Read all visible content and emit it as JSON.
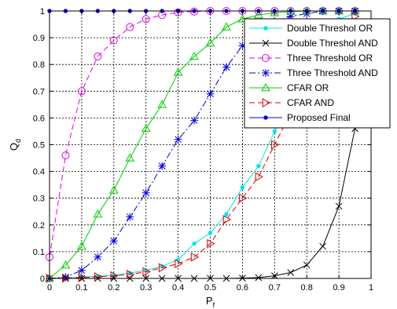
{
  "chart_data": {
    "type": "line",
    "xlabel": "P",
    "xlabel_sub": "f",
    "ylabel": "Q",
    "ylabel_sub": "d",
    "xlim": [
      0,
      1
    ],
    "ylim": [
      0,
      1
    ],
    "xticks": [
      "0",
      "0.1",
      "0.2",
      "0.3",
      "0.4",
      "0.5",
      "0.6",
      "0.7",
      "0.8",
      "0.9",
      "1"
    ],
    "yticks": [
      "0",
      "0.1",
      "0.2",
      "0.3",
      "0.4",
      "0.5",
      "0.6",
      "0.7",
      "0.8",
      "0.9",
      "1"
    ],
    "grid": true,
    "legend_position": "top-right",
    "series": [
      {
        "name": "Double Threshol OR",
        "color": "#00e5e5",
        "marker": "dot",
        "dash": "solid",
        "x": [
          0,
          0.05,
          0.1,
          0.15,
          0.2,
          0.25,
          0.3,
          0.35,
          0.4,
          0.45,
          0.5,
          0.55,
          0.6,
          0.65,
          0.7,
          0.75,
          0.8,
          0.85,
          0.9,
          0.95
        ],
        "y": [
          0,
          0.002,
          0.005,
          0.008,
          0.012,
          0.02,
          0.03,
          0.045,
          0.07,
          0.13,
          0.17,
          0.24,
          0.34,
          0.42,
          0.55,
          0.67,
          0.8,
          0.9,
          0.97,
          0.99
        ]
      },
      {
        "name": "Double Threshol AND",
        "color": "#000000",
        "marker": "x",
        "dash": "solid",
        "x": [
          0,
          0.05,
          0.1,
          0.15,
          0.2,
          0.25,
          0.3,
          0.35,
          0.4,
          0.45,
          0.5,
          0.55,
          0.6,
          0.65,
          0.7,
          0.75,
          0.8,
          0.85,
          0.9,
          0.95
        ],
        "y": [
          0,
          0,
          0,
          0,
          0,
          0,
          0,
          0,
          0,
          0,
          0,
          0,
          0.001,
          0.003,
          0.01,
          0.022,
          0.05,
          0.12,
          0.27,
          0.56
        ]
      },
      {
        "name": "Three Threshold OR",
        "color": "#e000e0",
        "marker": "circle",
        "dash": "dashed",
        "x": [
          0,
          0.05,
          0.1,
          0.15,
          0.2,
          0.25,
          0.3,
          0.35,
          0.4,
          0.45,
          0.5,
          0.55,
          0.6,
          0.65,
          0.7,
          0.75,
          0.8,
          0.85,
          0.9,
          0.95
        ],
        "y": [
          0.08,
          0.46,
          0.7,
          0.83,
          0.89,
          0.94,
          0.97,
          0.985,
          0.995,
          0.998,
          1,
          1,
          1,
          1,
          1,
          1,
          1,
          1,
          1,
          1
        ]
      },
      {
        "name": "Three Threshold AND",
        "color": "#0000cc",
        "marker": "star",
        "dash": "dashdot",
        "x": [
          0,
          0.05,
          0.1,
          0.15,
          0.2,
          0.25,
          0.3,
          0.35,
          0.4,
          0.45,
          0.5,
          0.55,
          0.6,
          0.65,
          0.7,
          0.75,
          0.8,
          0.85,
          0.9,
          0.95
        ],
        "y": [
          0,
          0.005,
          0.03,
          0.08,
          0.14,
          0.23,
          0.32,
          0.42,
          0.52,
          0.59,
          0.69,
          0.79,
          0.87,
          0.92,
          0.96,
          0.98,
          0.99,
          1,
          1,
          1
        ]
      },
      {
        "name": "CFAR OR",
        "color": "#00cc00",
        "marker": "triangle",
        "dash": "solid",
        "x": [
          0,
          0.05,
          0.1,
          0.15,
          0.2,
          0.25,
          0.3,
          0.35,
          0.4,
          0.45,
          0.5,
          0.55,
          0.6,
          0.65,
          0.7,
          0.75,
          0.8,
          0.85,
          0.9,
          0.95
        ],
        "y": [
          0,
          0.05,
          0.12,
          0.24,
          0.33,
          0.45,
          0.56,
          0.65,
          0.77,
          0.83,
          0.88,
          0.94,
          0.97,
          0.985,
          0.993,
          0.998,
          1,
          1,
          1,
          1
        ]
      },
      {
        "name": "CFAR AND",
        "color": "#dd0000",
        "marker": "triangle-right",
        "dash": "dashed",
        "x": [
          0,
          0.05,
          0.1,
          0.15,
          0.2,
          0.25,
          0.3,
          0.35,
          0.4,
          0.45,
          0.5,
          0.55,
          0.6,
          0.65,
          0.7,
          0.75,
          0.8,
          0.85,
          0.9,
          0.95
        ],
        "y": [
          0,
          0.001,
          0.003,
          0.006,
          0.01,
          0.015,
          0.025,
          0.04,
          0.055,
          0.08,
          0.13,
          0.22,
          0.3,
          0.38,
          0.5,
          0.62,
          0.75,
          0.86,
          0.93,
          0.98
        ]
      },
      {
        "name": "Proposed Final",
        "color": "#0000cc",
        "marker": "dot",
        "dash": "solid",
        "x": [
          0,
          0.05,
          0.1,
          0.15,
          0.2,
          0.25,
          0.3,
          0.35,
          0.4,
          0.45,
          0.5,
          0.55,
          0.6,
          0.65,
          0.7,
          0.75,
          0.8,
          0.85,
          0.9,
          0.95
        ],
        "y": [
          1,
          1,
          1,
          1,
          1,
          1,
          1,
          1,
          1,
          1,
          1,
          1,
          1,
          1,
          1,
          1,
          1,
          1,
          1,
          1
        ]
      }
    ]
  }
}
